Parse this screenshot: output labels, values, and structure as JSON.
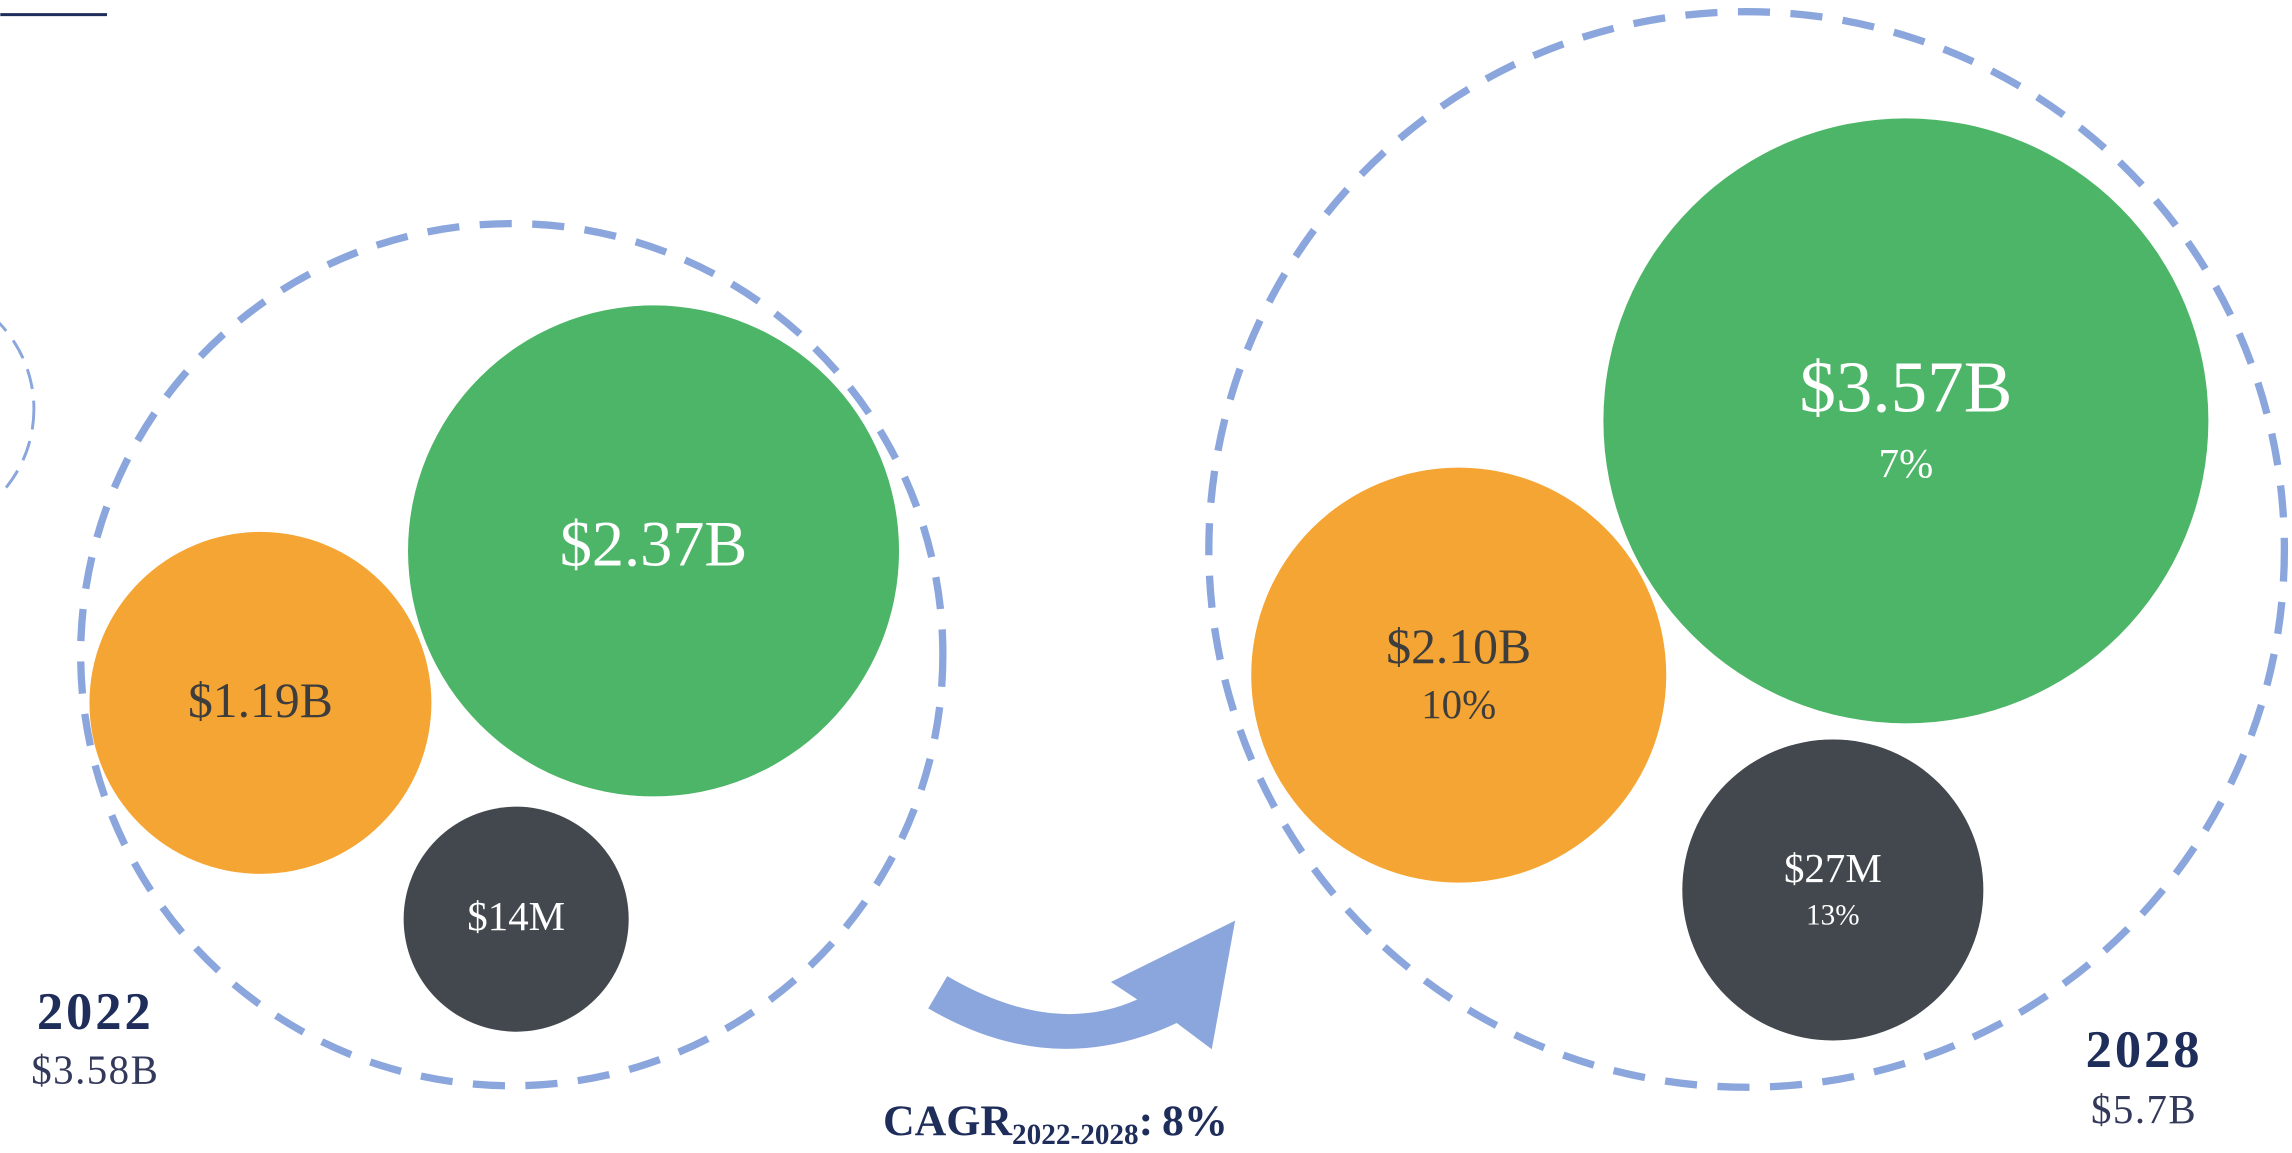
{
  "groups": [
    {
      "year": "2022",
      "total": "$3.58B",
      "bubbles": [
        {
          "label": "$2.37B"
        },
        {
          "label": "$1.19B"
        },
        {
          "label": "$14M"
        }
      ]
    },
    {
      "year": "2028",
      "total": "$5.7B",
      "bubbles": [
        {
          "label": "$3.57B",
          "growth": "7%"
        },
        {
          "label": "$2.10B",
          "growth": "10%"
        },
        {
          "label": "$27M",
          "growth": "13%"
        }
      ]
    }
  ],
  "cagr": {
    "label": "CAGR",
    "period": "2022-2028",
    "separator": ":",
    "value": "8%"
  }
}
